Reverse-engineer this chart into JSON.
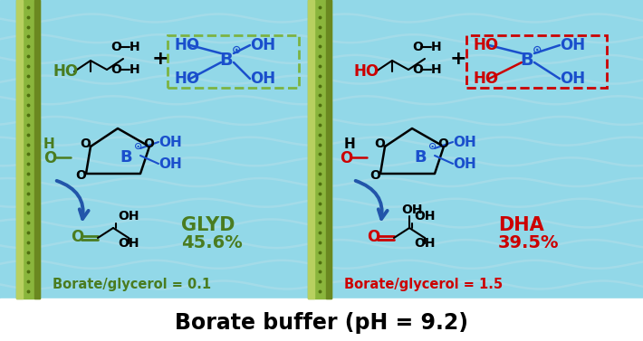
{
  "title": "Borate buffer (pH = 9.2)",
  "title_color": "#000000",
  "title_fontsize": 17,
  "left_glyd": "GLYD",
  "left_pct": "45.6%",
  "left_ratio": "Borate/glycerol = 0.1",
  "left_color": "#4a7c20",
  "right_dha": "DHA",
  "right_pct": "39.5%",
  "right_ratio": "Borate/glycerol = 1.5",
  "right_color": "#cc0000",
  "water_color": "#92d8e8",
  "water_light": "#b8e8f2",
  "bar_color1": "#9ab840",
  "bar_color2": "#c8d878",
  "bar_dark": "#708820",
  "blue_color": "#1a4fcc",
  "arrow_color": "#2255aa",
  "dashed_left": "#7cb342",
  "dashed_right": "#cc0000",
  "white_bg": "#ffffff"
}
